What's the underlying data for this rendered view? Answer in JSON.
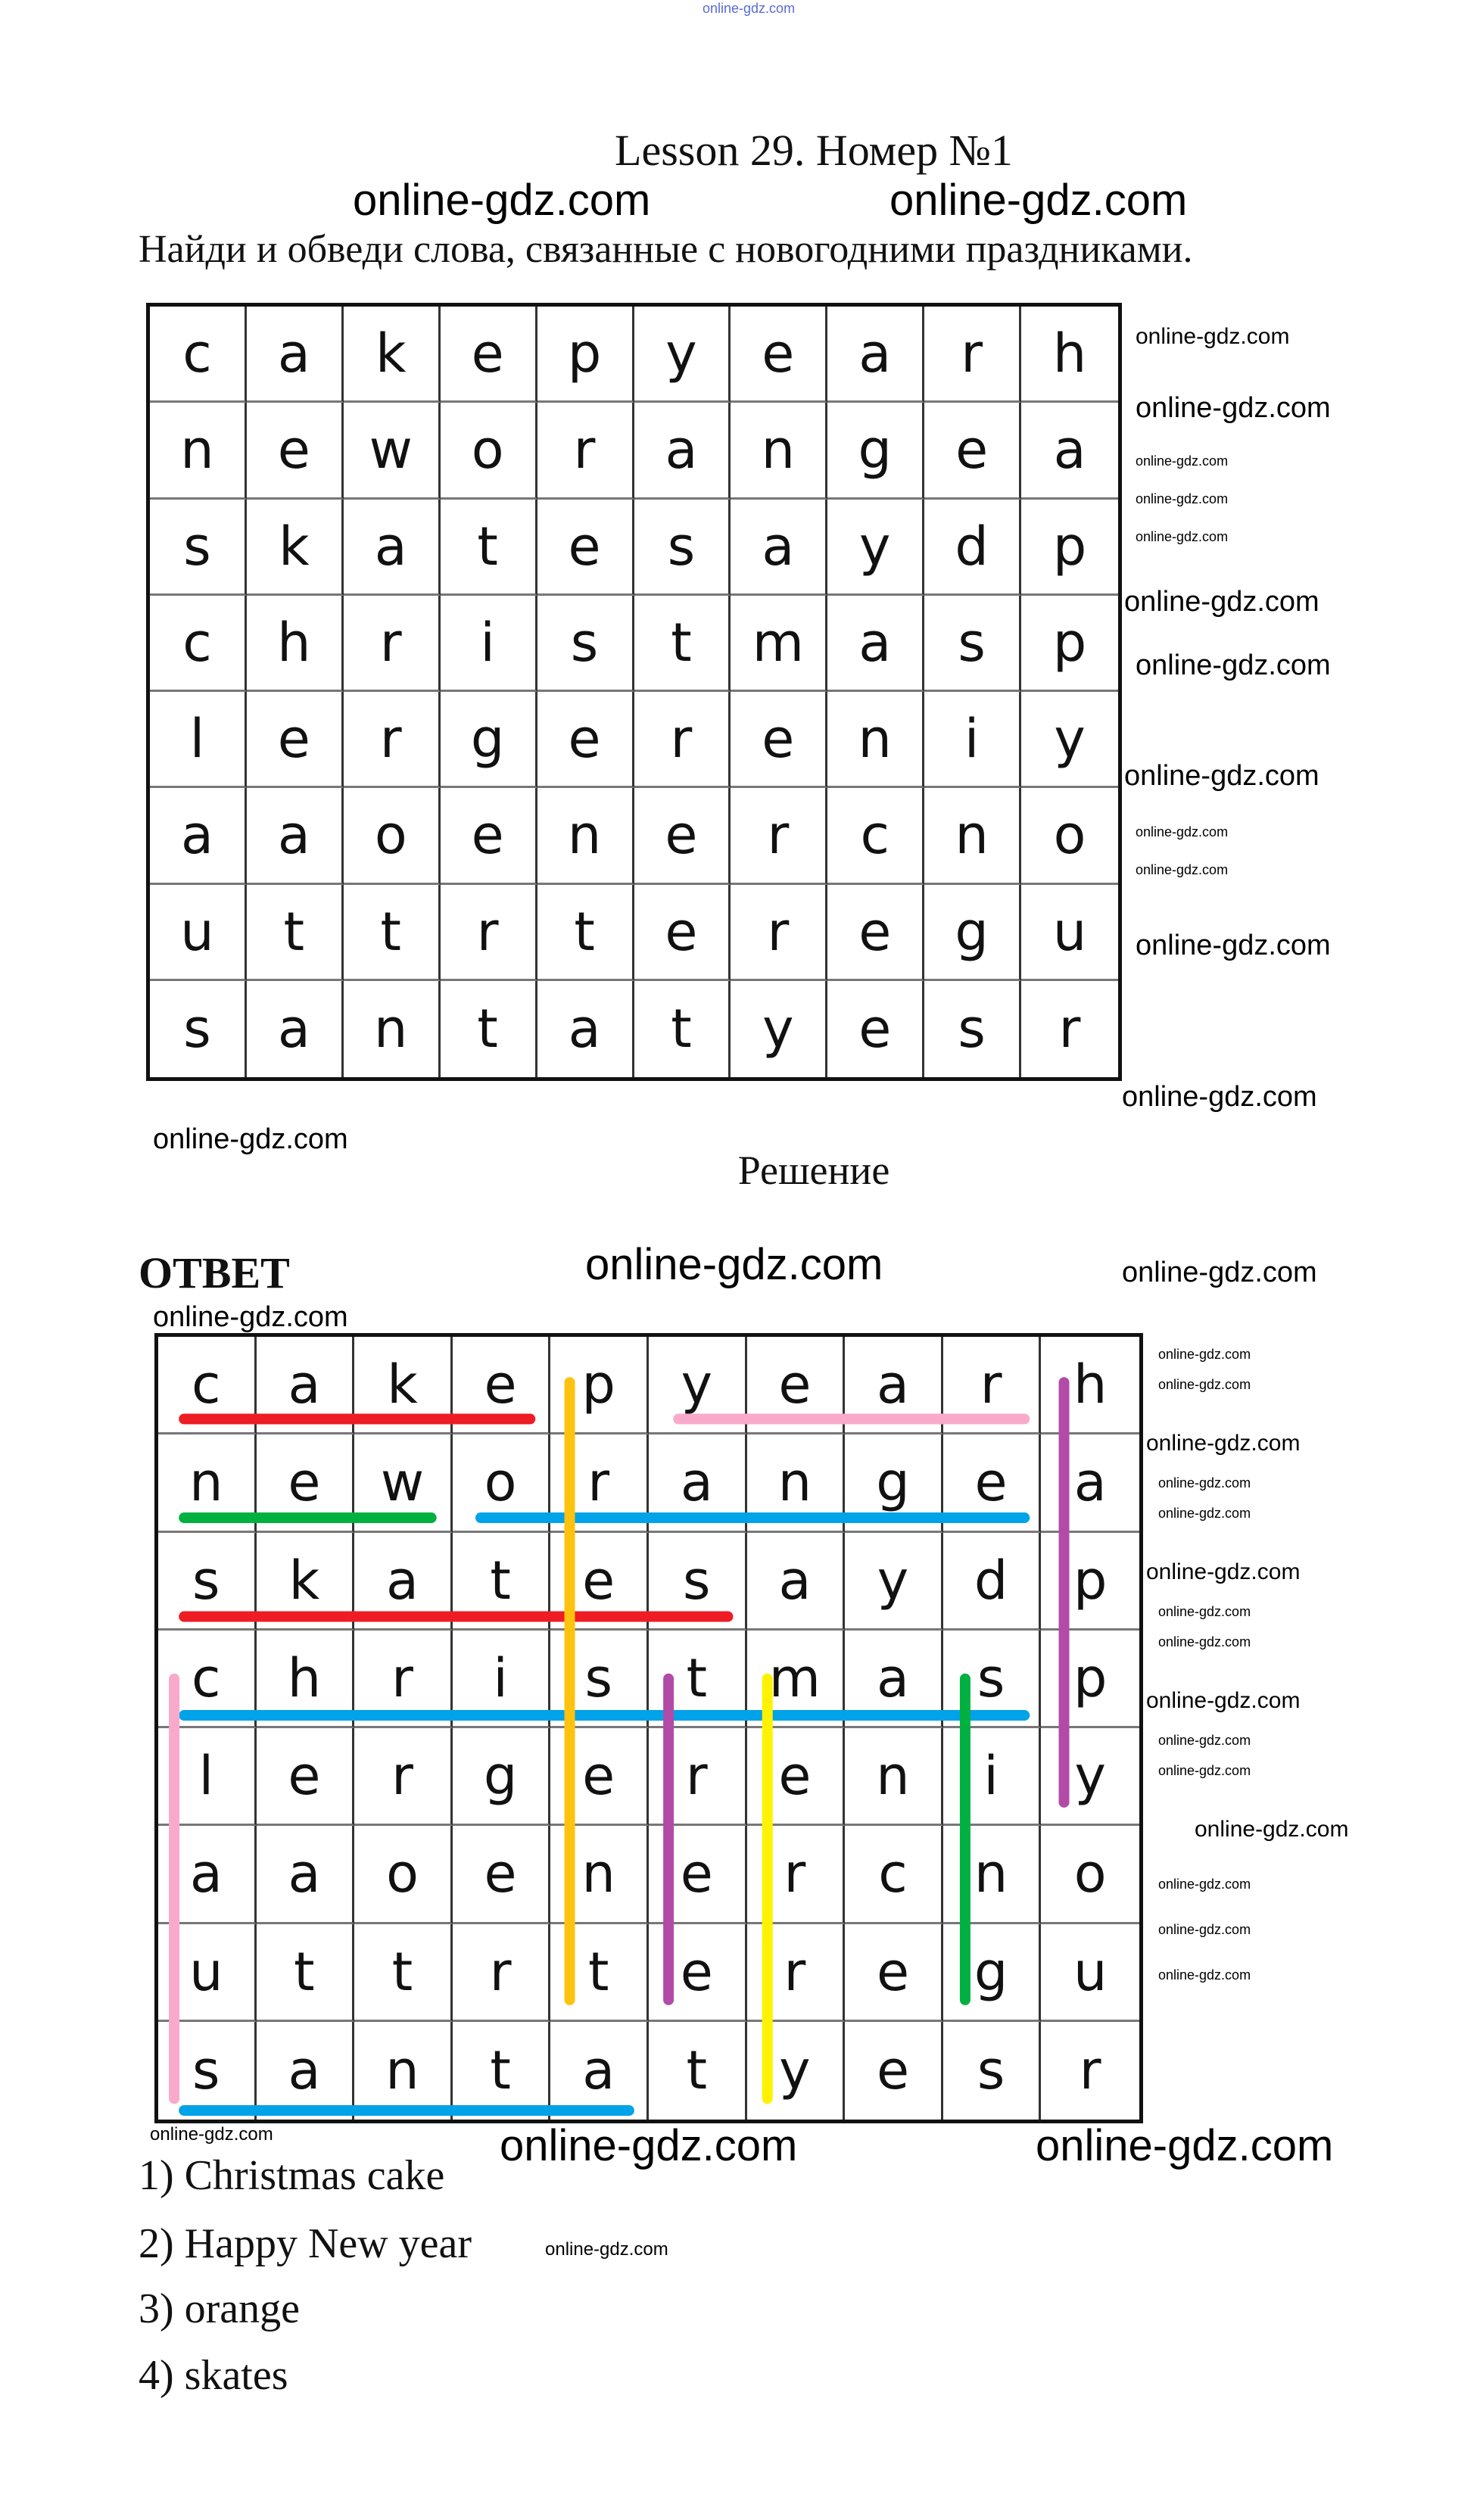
{
  "watermark": "online-gdz.com",
  "title": "Lesson 29. Номер №1",
  "instruction": "Найди и обведи слова, связанные с новогодними праздниками.",
  "puzzle_grid": [
    [
      "c",
      "a",
      "k",
      "e",
      "p",
      "y",
      "e",
      "a",
      "r",
      "h"
    ],
    [
      "n",
      "e",
      "w",
      "o",
      "r",
      "a",
      "n",
      "g",
      "e",
      "a"
    ],
    [
      "s",
      "k",
      "a",
      "t",
      "e",
      "s",
      "a",
      "y",
      "d",
      "p"
    ],
    [
      "c",
      "h",
      "r",
      "i",
      "s",
      "t",
      "m",
      "a",
      "s",
      "p"
    ],
    [
      "l",
      "e",
      "r",
      "g",
      "e",
      "r",
      "e",
      "n",
      "i",
      "y"
    ],
    [
      "a",
      "a",
      "o",
      "e",
      "n",
      "e",
      "r",
      "c",
      "n",
      "o"
    ],
    [
      "u",
      "t",
      "t",
      "r",
      "t",
      "e",
      "r",
      "e",
      "g",
      "u"
    ],
    [
      "s",
      "a",
      "n",
      "t",
      "a",
      "t",
      "y",
      "e",
      "s",
      "r"
    ]
  ],
  "solution_heading": "Решение",
  "answer_heading": "ОТВЕТ",
  "found_words": [
    {
      "word": "cake",
      "from": [
        0,
        0
      ],
      "to": [
        0,
        3
      ],
      "color": "#ee1c24"
    },
    {
      "word": "year",
      "from": [
        0,
        5
      ],
      "to": [
        0,
        8
      ],
      "color": "#f9aacb"
    },
    {
      "word": "new",
      "from": [
        1,
        0
      ],
      "to": [
        1,
        2
      ],
      "color": "#00b140"
    },
    {
      "word": "orange",
      "from": [
        1,
        3
      ],
      "to": [
        1,
        8
      ],
      "color": "#00a2e8"
    },
    {
      "word": "skates",
      "from": [
        2,
        0
      ],
      "to": [
        2,
        5
      ],
      "color": "#ee1c24"
    },
    {
      "word": "christmas",
      "from": [
        3,
        0
      ],
      "to": [
        3,
        8
      ],
      "color": "#00a2e8"
    },
    {
      "word": "santa",
      "from": [
        7,
        0
      ],
      "to": [
        7,
        4
      ],
      "color": "#00a2e8"
    },
    {
      "word": "present",
      "from": [
        0,
        4
      ],
      "to": [
        6,
        4
      ],
      "color": "#ffc20e"
    },
    {
      "word": "happy",
      "from": [
        0,
        9
      ],
      "to": [
        4,
        9
      ],
      "color": "#b24ba8"
    },
    {
      "word": "tree",
      "from": [
        3,
        5
      ],
      "to": [
        6,
        5
      ],
      "color": "#b24ba8"
    },
    {
      "word": "merry",
      "from": [
        3,
        6
      ],
      "to": [
        7,
        6
      ],
      "color": "#fff200"
    },
    {
      "word": "sing",
      "from": [
        3,
        8
      ],
      "to": [
        6,
        8
      ],
      "color": "#00b140"
    },
    {
      "word": "claus",
      "from": [
        3,
        0
      ],
      "to": [
        7,
        0
      ],
      "color": "#f9aacb"
    }
  ],
  "answers": [
    "1) Christmas cake",
    "2) Happy New year",
    "3) orange",
    "4) skates"
  ]
}
